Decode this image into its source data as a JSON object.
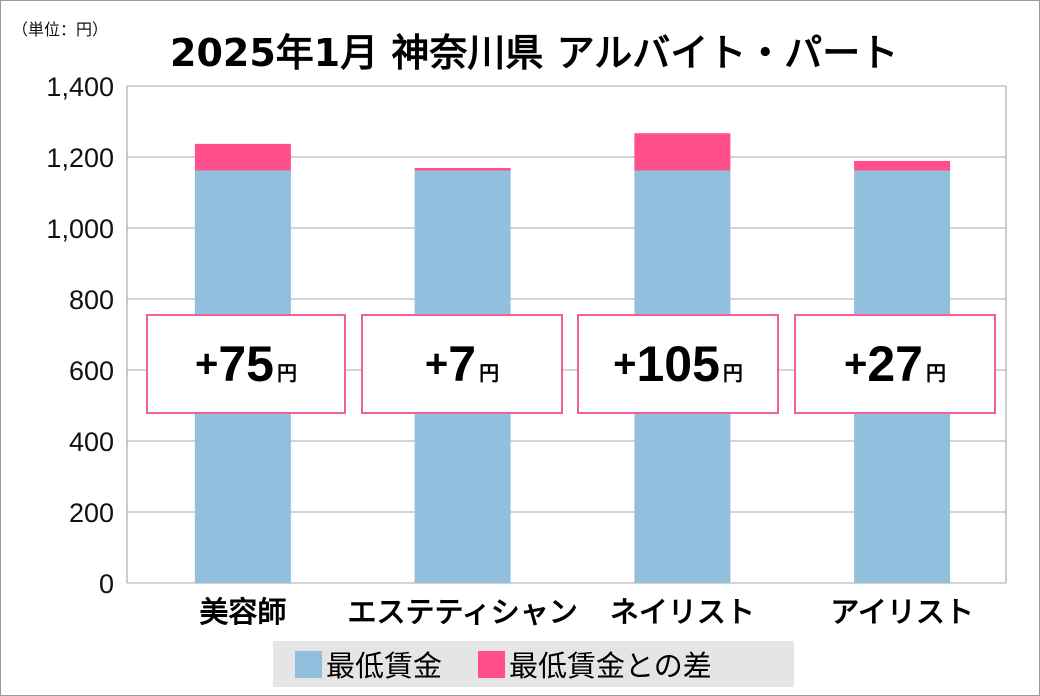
{
  "chart_data": {
    "type": "bar",
    "stacked": true,
    "title": "2025年1月 神奈川県 アルバイト・パート",
    "unit_label": "（単位：円）",
    "categories": [
      "美容師",
      "エステティシャン",
      "ネイリスト",
      "アイリスト"
    ],
    "series": [
      {
        "name": "最低賃金",
        "values": [
          1162,
          1162,
          1162,
          1162
        ],
        "color": "#93bfdf"
      },
      {
        "name": "最低賃金との差",
        "values": [
          75,
          7,
          105,
          27
        ],
        "color": "#ff4f8d"
      }
    ],
    "annotations": [
      {
        "plus": "+",
        "value": "75",
        "unit": "円"
      },
      {
        "plus": "+ ",
        "value": "7",
        "unit": "円"
      },
      {
        "plus": "+",
        "value": "105",
        "unit": "円"
      },
      {
        "plus": "+",
        "value": "27",
        "unit": "円"
      }
    ],
    "ylim": [
      0,
      1400
    ],
    "yticks": [
      0,
      200,
      400,
      600,
      800,
      1000,
      1200,
      1400
    ],
    "ytick_labels": [
      "0",
      "200",
      "400",
      "600",
      "800",
      "1,000",
      "1,200",
      "1,400"
    ],
    "grid": true,
    "legend_position": "bottom"
  }
}
